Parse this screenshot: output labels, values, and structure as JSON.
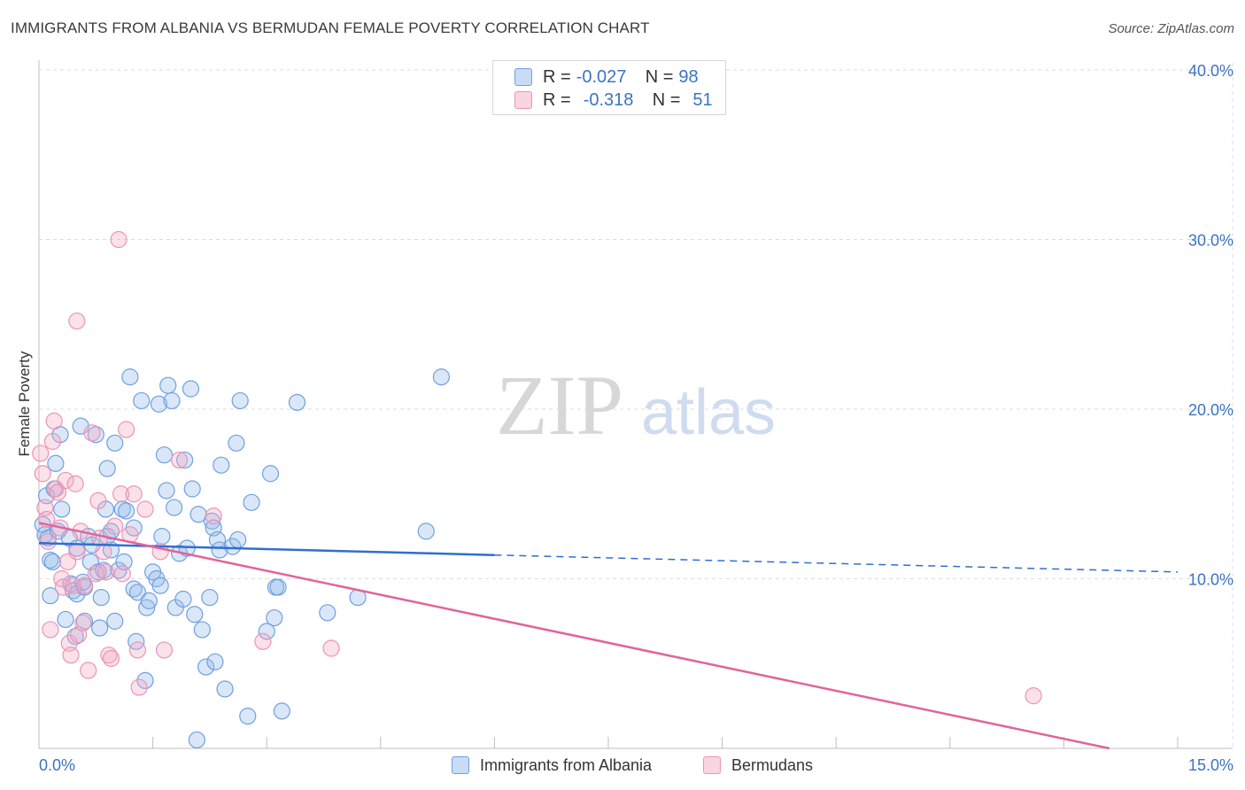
{
  "header": {
    "title": "IMMIGRANTS FROM ALBANIA VS BERMUDAN FEMALE POVERTY CORRELATION CHART",
    "source": "Source: ZipAtlas.com"
  },
  "legend": {
    "rows": [
      {
        "r_label": "R =",
        "r_value": "-0.027",
        "n_label": "N =",
        "n_value": "98"
      },
      {
        "r_label": "R =",
        "r_value": "-0.318",
        "n_label": "N =",
        "n_value": "51"
      }
    ]
  },
  "watermark": {
    "part1": "ZIP",
    "part2": "atlas"
  },
  "colors": {
    "blue": "#6fa0e0",
    "blue_fill": "rgba(147,185,235,0.35)",
    "blue_line": "#2f6fcf",
    "pink": "#ec94b4",
    "pink_fill": "rgba(244,170,196,0.35)",
    "pink_line": "#e0659a",
    "axis_text": "#3b73c4",
    "grid": "#dcdcdc"
  },
  "chart_data": {
    "type": "scatter",
    "title": "IMMIGRANTS FROM ALBANIA VS BERMUDAN FEMALE POVERTY CORRELATION CHART",
    "xlabel": "",
    "ylabel": "Female Poverty",
    "xlim": [
      0,
      15
    ],
    "ylim": [
      0,
      40
    ],
    "x_tick_labels": [
      "0.0%",
      "15.0%"
    ],
    "y_ticks": [
      10,
      20,
      30,
      40
    ],
    "y_tick_labels": [
      "10.0%",
      "20.0%",
      "30.0%",
      "40.0%"
    ],
    "grid": true,
    "series": [
      {
        "name": "Immigrants from Albania",
        "color": "#6fa0e0",
        "r": -0.027,
        "n": 98,
        "trend": {
          "x0": 0,
          "y0": 12.1,
          "x1": 6.0,
          "y1": 11.4,
          "dashed_to_x": 15,
          "dashed_to_y": 10.4
        },
        "points": [
          [
            0.05,
            13.2
          ],
          [
            0.08,
            12.6
          ],
          [
            0.1,
            14.9
          ],
          [
            0.12,
            12.4
          ],
          [
            0.15,
            11.1
          ],
          [
            0.18,
            11.0
          ],
          [
            0.2,
            15.3
          ],
          [
            0.22,
            16.8
          ],
          [
            0.25,
            12.8
          ],
          [
            0.28,
            18.5
          ],
          [
            0.3,
            14.1
          ],
          [
            0.35,
            7.6
          ],
          [
            0.4,
            12.4
          ],
          [
            0.42,
            9.7
          ],
          [
            0.45,
            9.3
          ],
          [
            0.48,
            6.6
          ],
          [
            0.5,
            9.1
          ],
          [
            0.55,
            19.0
          ],
          [
            0.6,
            7.5
          ],
          [
            0.6,
            9.5
          ],
          [
            0.65,
            12.5
          ],
          [
            0.68,
            11.0
          ],
          [
            0.7,
            12.0
          ],
          [
            0.75,
            18.5
          ],
          [
            0.78,
            10.4
          ],
          [
            0.8,
            7.1
          ],
          [
            0.82,
            8.9
          ],
          [
            0.85,
            10.5
          ],
          [
            0.88,
            14.1
          ],
          [
            0.9,
            12.5
          ],
          [
            0.95,
            12.8
          ],
          [
            0.95,
            11.7
          ],
          [
            1.0,
            7.5
          ],
          [
            1.0,
            18.0
          ],
          [
            1.05,
            10.5
          ],
          [
            1.1,
            14.1
          ],
          [
            1.12,
            11.0
          ],
          [
            1.15,
            14.0
          ],
          [
            1.2,
            21.9
          ],
          [
            1.25,
            9.4
          ],
          [
            1.28,
            6.3
          ],
          [
            1.3,
            9.2
          ],
          [
            1.35,
            20.5
          ],
          [
            1.4,
            4.0
          ],
          [
            1.42,
            8.3
          ],
          [
            1.45,
            8.7
          ],
          [
            1.5,
            10.4
          ],
          [
            1.55,
            10.0
          ],
          [
            1.58,
            20.3
          ],
          [
            1.6,
            9.6
          ],
          [
            1.62,
            12.5
          ],
          [
            1.65,
            17.3
          ],
          [
            1.68,
            15.2
          ],
          [
            1.7,
            21.4
          ],
          [
            1.75,
            20.5
          ],
          [
            1.78,
            14.2
          ],
          [
            1.8,
            8.3
          ],
          [
            1.85,
            11.5
          ],
          [
            1.9,
            8.8
          ],
          [
            1.92,
            17.0
          ],
          [
            1.95,
            11.8
          ],
          [
            2.0,
            21.2
          ],
          [
            2.02,
            15.3
          ],
          [
            2.05,
            7.9
          ],
          [
            2.08,
            0.5
          ],
          [
            2.1,
            13.8
          ],
          [
            2.15,
            7.0
          ],
          [
            2.2,
            4.8
          ],
          [
            2.25,
            8.9
          ],
          [
            2.28,
            13.4
          ],
          [
            2.3,
            13.0
          ],
          [
            2.32,
            5.1
          ],
          [
            2.35,
            12.3
          ],
          [
            2.38,
            11.7
          ],
          [
            2.4,
            16.7
          ],
          [
            2.45,
            3.5
          ],
          [
            2.55,
            11.9
          ],
          [
            2.6,
            18.0
          ],
          [
            2.62,
            12.3
          ],
          [
            2.65,
            20.5
          ],
          [
            2.75,
            1.9
          ],
          [
            3.0,
            6.9
          ],
          [
            3.05,
            16.2
          ],
          [
            3.1,
            7.7
          ],
          [
            3.12,
            9.5
          ],
          [
            3.15,
            9.5
          ],
          [
            3.2,
            2.2
          ],
          [
            3.4,
            20.4
          ],
          [
            3.8,
            8.0
          ],
          [
            4.2,
            8.9
          ],
          [
            5.1,
            12.8
          ],
          [
            5.3,
            21.9
          ],
          [
            0.5,
            11.8
          ],
          [
            0.58,
            9.8
          ],
          [
            0.9,
            16.5
          ],
          [
            1.25,
            13.0
          ],
          [
            0.15,
            9.0
          ],
          [
            2.8,
            14.5
          ]
        ]
      },
      {
        "name": "Bermudans",
        "color": "#ec94b4",
        "r": -0.318,
        "n": 51,
        "trend": {
          "x0": 0,
          "y0": 13.3,
          "x1": 14.1,
          "y1": 0
        },
        "points": [
          [
            0.02,
            17.4
          ],
          [
            0.05,
            16.2
          ],
          [
            0.08,
            14.2
          ],
          [
            0.1,
            13.5
          ],
          [
            0.12,
            12.2
          ],
          [
            0.15,
            7.0
          ],
          [
            0.18,
            18.1
          ],
          [
            0.2,
            19.3
          ],
          [
            0.22,
            15.3
          ],
          [
            0.25,
            15.1
          ],
          [
            0.28,
            13.0
          ],
          [
            0.3,
            10.0
          ],
          [
            0.32,
            9.5
          ],
          [
            0.35,
            15.8
          ],
          [
            0.38,
            11.0
          ],
          [
            0.4,
            6.2
          ],
          [
            0.42,
            5.5
          ],
          [
            0.45,
            9.6
          ],
          [
            0.48,
            15.6
          ],
          [
            0.5,
            11.6
          ],
          [
            0.52,
            6.7
          ],
          [
            0.55,
            12.8
          ],
          [
            0.58,
            7.4
          ],
          [
            0.6,
            9.6
          ],
          [
            0.65,
            4.6
          ],
          [
            0.7,
            18.6
          ],
          [
            0.75,
            10.3
          ],
          [
            0.78,
            14.6
          ],
          [
            0.8,
            12.4
          ],
          [
            0.85,
            11.6
          ],
          [
            0.88,
            10.4
          ],
          [
            0.92,
            5.5
          ],
          [
            0.95,
            5.3
          ],
          [
            1.0,
            13.1
          ],
          [
            1.05,
            30.0
          ],
          [
            1.08,
            15.0
          ],
          [
            1.1,
            10.3
          ],
          [
            1.15,
            18.8
          ],
          [
            1.2,
            12.6
          ],
          [
            1.25,
            15.0
          ],
          [
            1.3,
            5.8
          ],
          [
            1.32,
            3.6
          ],
          [
            1.4,
            14.1
          ],
          [
            1.6,
            11.6
          ],
          [
            1.65,
            5.8
          ],
          [
            1.85,
            17.0
          ],
          [
            2.3,
            13.7
          ],
          [
            2.95,
            6.3
          ],
          [
            3.85,
            5.9
          ],
          [
            13.1,
            3.1
          ],
          [
            0.5,
            25.2
          ]
        ]
      }
    ]
  },
  "bottom_legend": {
    "items": [
      "Immigrants from Albania",
      "Bermudans"
    ]
  }
}
